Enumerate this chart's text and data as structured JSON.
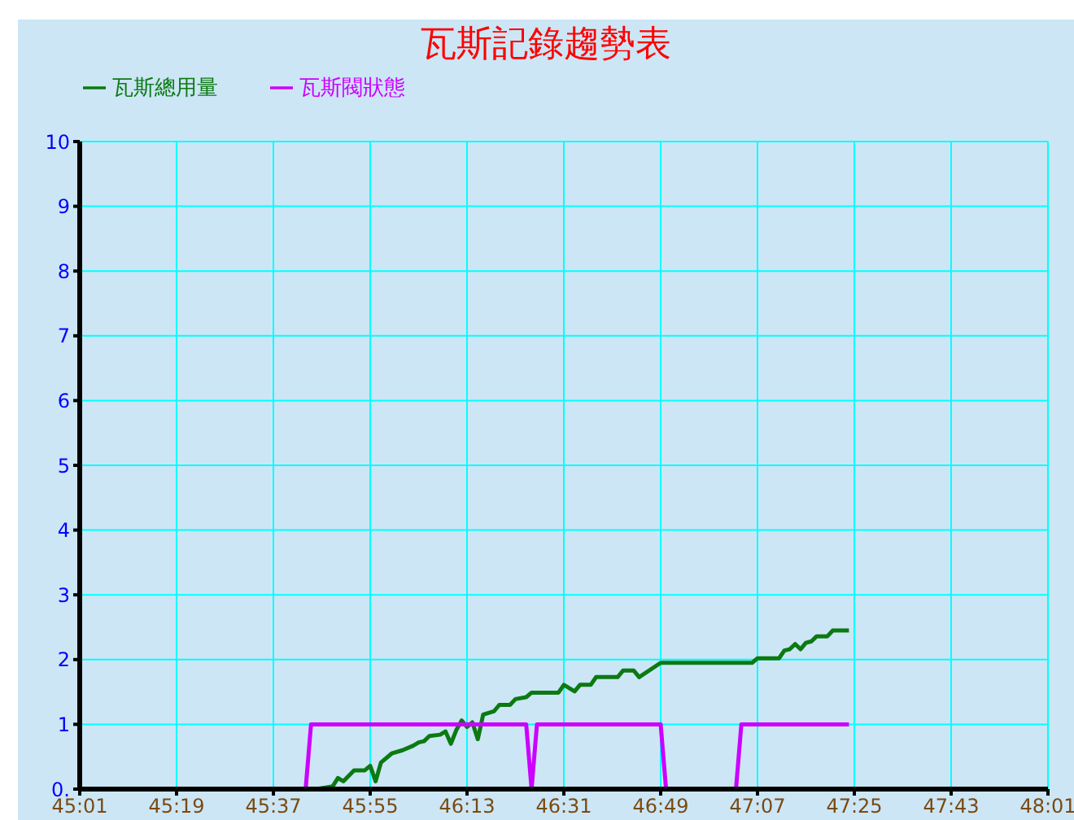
{
  "chart_data": {
    "type": "line",
    "title": "瓦斯記錄趨勢表",
    "legend": "top left",
    "grid": true,
    "marker": "none",
    "line_style": "solid",
    "xlim": [
      2701,
      2881
    ],
    "xticks": [
      {
        "value": 2701,
        "label": "45:01"
      },
      {
        "value": 2719,
        "label": "45:19"
      },
      {
        "value": 2737,
        "label": "45:37"
      },
      {
        "value": 2755,
        "label": "45:55"
      },
      {
        "value": 2773,
        "label": "46:13"
      },
      {
        "value": 2791,
        "label": "46:31"
      },
      {
        "value": 2809,
        "label": "46:49"
      },
      {
        "value": 2827,
        "label": "47:07"
      },
      {
        "value": 2845,
        "label": "47:25"
      },
      {
        "value": 2863,
        "label": "47:43"
      },
      {
        "value": 2881,
        "label": "48:01"
      }
    ],
    "ylim": [
      0,
      10
    ],
    "yticks": [
      {
        "value": 0,
        "label": "0."
      },
      1,
      2,
      3,
      4,
      5,
      6,
      7,
      8,
      9,
      10
    ],
    "series": [
      {
        "name": "瓦斯總用量",
        "color": "#0b7a12",
        "x": [
          2745,
          2748,
          2749,
          2750,
          2752,
          2754,
          2755,
          2756,
          2757,
          2759,
          2761,
          2763,
          2764,
          2765,
          2766,
          2768,
          2769,
          2770,
          2771,
          2772,
          2773,
          2774,
          2775,
          2776,
          2778,
          2779,
          2781,
          2782,
          2784,
          2785,
          2790,
          2791,
          2793,
          2794,
          2796,
          2797,
          2801,
          2802,
          2804,
          2805,
          2809,
          2826,
          2827,
          2831,
          2832,
          2833,
          2834,
          2835,
          2836,
          2837,
          2838,
          2840,
          2841,
          2844
        ],
        "values": [
          0,
          0.04,
          0.17,
          0.12,
          0.29,
          0.29,
          0.36,
          0.12,
          0.41,
          0.55,
          0.6,
          0.67,
          0.72,
          0.74,
          0.82,
          0.84,
          0.89,
          0.7,
          0.91,
          1.06,
          0.96,
          1.03,
          0.77,
          1.15,
          1.2,
          1.3,
          1.3,
          1.39,
          1.42,
          1.49,
          1.49,
          1.61,
          1.51,
          1.61,
          1.61,
          1.73,
          1.73,
          1.83,
          1.83,
          1.73,
          1.95,
          1.95,
          2.02,
          2.02,
          2.14,
          2.16,
          2.24,
          2.16,
          2.26,
          2.28,
          2.36,
          2.36,
          2.45,
          2.45
        ]
      },
      {
        "name": "瓦斯閥狀態",
        "color": "#cc00ff",
        "x": [
          2710,
          2743,
          2744,
          2784,
          2785,
          2786,
          2809,
          2810,
          2823,
          2824,
          2844
        ],
        "values": [
          0,
          0,
          1,
          1,
          0,
          1,
          1,
          0,
          0,
          1,
          1
        ]
      }
    ]
  }
}
